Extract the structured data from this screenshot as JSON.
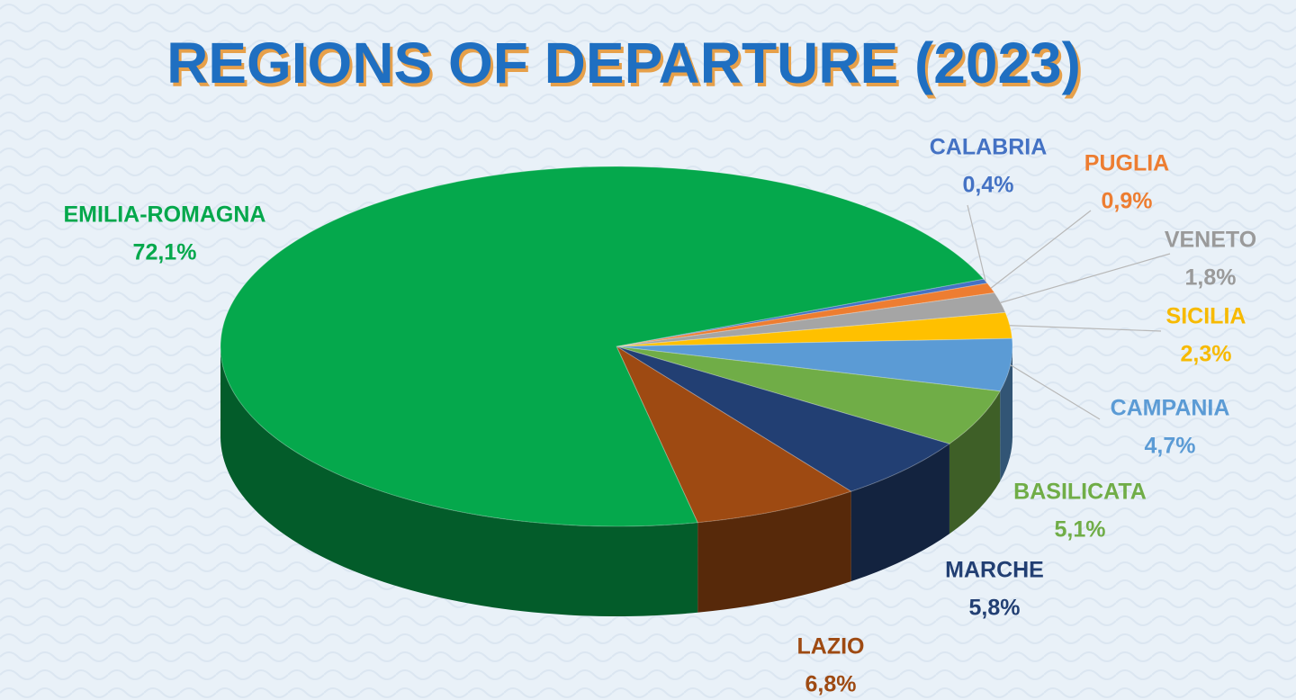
{
  "chart_data": {
    "type": "pie",
    "title": "REGIONS OF DEPARTURE (2023)",
    "categories": [
      "CALABRIA",
      "PUGLIA",
      "VENETO",
      "SICILIA",
      "CAMPANIA",
      "BASILICATA",
      "MARCHE",
      "LAZIO",
      "EMILIA-ROMAGNA"
    ],
    "values": [
      0.4,
      0.9,
      1.8,
      2.3,
      4.7,
      5.1,
      5.8,
      6.8,
      72.1
    ],
    "value_labels": [
      "0,4%",
      "0,9%",
      "1,8%",
      "2,3%",
      "4,7%",
      "5,1%",
      "5,8%",
      "6,8%",
      "72,1%"
    ],
    "colors": [
      "#4472c4",
      "#ed7d31",
      "#a5a5a5",
      "#ffc000",
      "#5b9bd5",
      "#70ad47",
      "#223f73",
      "#9e4a12",
      "#05a84c"
    ]
  }
}
